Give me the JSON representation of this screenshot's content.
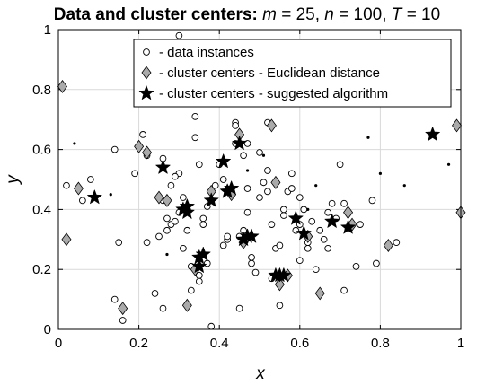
{
  "chart_data": {
    "type": "scatter",
    "title": {
      "bold": "Data and cluster centers:",
      "m_sym": "m",
      "m_val": " = 25, ",
      "n_sym": "n",
      "n_val": " = 100, ",
      "t_sym": "T",
      "t_val": " = 10"
    },
    "xlabel": "x",
    "ylabel": "y",
    "xlim": [
      0,
      1
    ],
    "ylim": [
      0,
      1
    ],
    "xticks": [
      "0",
      "0.2",
      "0.4",
      "0.6",
      "0.8",
      "1"
    ],
    "yticks": [
      "0",
      "0.2",
      "0.4",
      "0.6",
      "0.8",
      "1"
    ],
    "grid": true,
    "legend": {
      "placement": "top-right",
      "entries": [
        "- data instances",
        "- cluster centers - Euclidean distance",
        "- cluster centers - suggested algorithm"
      ]
    },
    "colors": {
      "data_marker_edge": "#000000",
      "diamond_fill": "#aaaaaa",
      "star_fill": "#000000",
      "grid": "#d9d9d9"
    },
    "series": [
      {
        "name": "- data instances",
        "marker": "circle",
        "x": [
          0.02,
          0.06,
          0.08,
          0.14,
          0.15,
          0.16,
          0.19,
          0.21,
          0.22,
          0.22,
          0.25,
          0.26,
          0.26,
          0.27,
          0.28,
          0.28,
          0.29,
          0.3,
          0.3,
          0.3,
          0.31,
          0.32,
          0.33,
          0.34,
          0.34,
          0.35,
          0.35,
          0.36,
          0.36,
          0.37,
          0.38,
          0.38,
          0.39,
          0.41,
          0.41,
          0.42,
          0.42,
          0.44,
          0.44,
          0.45,
          0.46,
          0.46,
          0.47,
          0.47,
          0.48,
          0.49,
          0.5,
          0.51,
          0.52,
          0.52,
          0.53,
          0.54,
          0.55,
          0.55,
          0.56,
          0.57,
          0.58,
          0.59,
          0.6,
          0.6,
          0.61,
          0.62,
          0.63,
          0.64,
          0.65,
          0.66,
          0.67,
          0.69,
          0.7,
          0.71,
          0.71,
          0.74,
          0.75,
          0.78,
          0.79,
          0.84,
          0.14,
          0.24,
          0.27,
          0.33,
          0.37,
          0.45,
          0.5,
          0.53,
          0.62,
          0.67,
          0.29,
          0.4,
          0.48,
          0.56,
          0.31,
          0.44,
          0.58,
          0.42,
          0.35,
          0.52,
          0.68,
          0.26,
          0.47,
          0.6
        ],
        "y": [
          0.48,
          0.43,
          0.5,
          0.6,
          0.29,
          0.03,
          0.52,
          0.65,
          0.58,
          0.29,
          0.31,
          0.43,
          0.07,
          0.37,
          0.48,
          0.35,
          0.36,
          0.98,
          0.52,
          0.39,
          0.44,
          0.33,
          0.21,
          0.71,
          0.64,
          0.18,
          0.55,
          0.37,
          0.35,
          0.22,
          0.43,
          0.01,
          0.48,
          0.5,
          0.28,
          0.46,
          0.3,
          0.69,
          0.62,
          0.07,
          0.58,
          0.33,
          0.47,
          0.39,
          0.22,
          0.19,
          0.44,
          0.49,
          0.69,
          0.53,
          0.35,
          0.27,
          0.28,
          0.08,
          0.38,
          0.46,
          0.47,
          0.33,
          0.35,
          0.23,
          0.4,
          0.29,
          0.36,
          0.2,
          0.33,
          0.3,
          0.27,
          0.37,
          0.55,
          0.13,
          0.42,
          0.21,
          0.35,
          0.43,
          0.22,
          0.29,
          0.1,
          0.12,
          0.33,
          0.13,
          0.41,
          0.31,
          0.59,
          0.17,
          0.27,
          0.39,
          0.51,
          0.55,
          0.24,
          0.4,
          0.27,
          0.68,
          0.52,
          0.31,
          0.16,
          0.46,
          0.42,
          0.57,
          0.62,
          0.44
        ]
      },
      {
        "name": "- cluster centers - Euclidean distance",
        "marker": "diamond",
        "x": [
          0.01,
          0.02,
          0.05,
          0.16,
          0.2,
          0.22,
          0.25,
          0.27,
          0.32,
          0.34,
          0.38,
          0.43,
          0.45,
          0.46,
          0.53,
          0.54,
          0.55,
          0.57,
          0.62,
          0.65,
          0.72,
          0.73,
          0.82,
          0.99,
          1.0
        ],
        "y": [
          0.81,
          0.3,
          0.47,
          0.07,
          0.61,
          0.59,
          0.44,
          0.43,
          0.08,
          0.2,
          0.46,
          0.45,
          0.65,
          0.29,
          0.68,
          0.49,
          0.15,
          0.18,
          0.31,
          0.12,
          0.39,
          0.35,
          0.28,
          0.68,
          0.39
        ]
      },
      {
        "name": "- cluster centers - suggested algorithm",
        "marker": "star",
        "x": [
          0.09,
          0.26,
          0.31,
          0.32,
          0.35,
          0.35,
          0.38,
          0.41,
          0.42,
          0.43,
          0.45,
          0.47,
          0.48,
          0.54,
          0.55,
          0.59,
          0.61,
          0.68,
          0.72,
          0.93,
          0.42,
          0.56,
          0.32,
          0.36,
          0.46
        ],
        "y": [
          0.44,
          0.54,
          0.4,
          0.41,
          0.21,
          0.24,
          0.43,
          0.56,
          0.46,
          0.47,
          0.62,
          0.31,
          0.31,
          0.18,
          0.18,
          0.37,
          0.32,
          0.36,
          0.34,
          0.65,
          0.46,
          0.18,
          0.39,
          0.25,
          0.3
        ]
      },
      {
        "name": "",
        "marker": "dot",
        "x": [
          0.04,
          0.13,
          0.27,
          0.36,
          0.47,
          0.51,
          0.64,
          0.77,
          0.8,
          0.86,
          0.97,
          0.62
        ],
        "y": [
          0.62,
          0.45,
          0.25,
          0.36,
          0.53,
          0.58,
          0.48,
          0.64,
          0.52,
          0.48,
          0.55,
          0.4
        ]
      }
    ]
  }
}
